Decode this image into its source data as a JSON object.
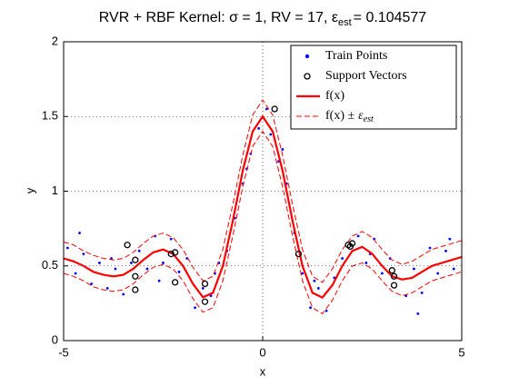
{
  "chart_data": {
    "type": "rvr",
    "title": [
      "RVR + RBF Kernel: σ = 1, RV = 17, ε",
      "est",
      "= 0.104577"
    ],
    "xlabel": "x",
    "ylabel": "y",
    "xlim": [
      -5,
      5
    ],
    "ylim": [
      0,
      2
    ],
    "xticks": [
      -5,
      0,
      5
    ],
    "yticks": [
      0,
      0.5,
      1,
      1.5,
      2
    ],
    "grid": true,
    "legend": "northeast",
    "train": {
      "name": "Train Points",
      "color": "#0000ff",
      "x": [
        -4.9,
        -4.7,
        -4.5,
        -4.3,
        -4.1,
        -3.9,
        -3.7,
        -3.5,
        -3.3,
        -3.1,
        -2.9,
        -2.7,
        -2.5,
        -2.3,
        -2.1,
        -1.9,
        -1.7,
        -1.5,
        -1.3,
        -1.1,
        -0.9,
        -0.7,
        -0.5,
        -0.3,
        -0.1,
        0.1,
        0.2,
        0.4,
        0.6,
        0.8,
        1.0,
        1.2,
        1.4,
        1.6,
        1.8,
        2.0,
        2.4,
        2.6,
        2.8,
        3.0,
        3.2,
        3.6,
        3.8,
        4.0,
        4.2,
        4.4,
        4.6,
        4.8,
        -4.6,
        -3.8,
        -2.6,
        -1.2,
        -0.4,
        0.5,
        1.3,
        2.7,
        3.9,
        4.7
      ],
      "y": [
        0.62,
        0.45,
        0.58,
        0.38,
        0.52,
        0.35,
        0.48,
        0.31,
        0.52,
        0.6,
        0.48,
        0.7,
        0.52,
        0.68,
        0.46,
        0.55,
        0.22,
        0.35,
        0.3,
        0.52,
        0.6,
        0.82,
        1.05,
        1.25,
        1.42,
        1.55,
        1.38,
        1.2,
        1.05,
        0.72,
        0.45,
        0.22,
        0.35,
        0.2,
        0.42,
        0.55,
        0.7,
        0.52,
        0.68,
        0.45,
        0.55,
        0.3,
        0.48,
        0.32,
        0.62,
        0.45,
        0.6,
        0.48,
        0.72,
        0.55,
        0.4,
        0.45,
        1.15,
        1.28,
        0.4,
        0.58,
        0.18,
        0.68
      ]
    },
    "support_vectors": {
      "name": "Support Vectors",
      "color": "#000000",
      "x": [
        -3.4,
        -3.2,
        -3.2,
        -3.2,
        -2.3,
        -2.2,
        -2.2,
        -1.45,
        -1.45,
        0.3,
        0.9,
        2.15,
        2.2,
        2.25,
        3.25,
        3.3,
        3.3
      ],
      "y": [
        0.64,
        0.54,
        0.43,
        0.34,
        0.58,
        0.59,
        0.39,
        0.38,
        0.26,
        1.55,
        0.58,
        0.64,
        0.63,
        0.65,
        0.47,
        0.43,
        0.37
      ]
    },
    "fit": {
      "name": "f(x)",
      "color": "#ff0000",
      "x": [
        -5,
        -4.75,
        -4.5,
        -4.25,
        -4,
        -3.75,
        -3.5,
        -3.25,
        -3,
        -2.75,
        -2.5,
        -2.25,
        -2,
        -1.75,
        -1.5,
        -1.25,
        -1,
        -0.75,
        -0.5,
        -0.25,
        0,
        0.25,
        0.5,
        0.75,
        1,
        1.25,
        1.5,
        1.75,
        2,
        2.25,
        2.5,
        2.75,
        3,
        3.25,
        3.5,
        3.75,
        4,
        4.25,
        4.5,
        4.75,
        5
      ],
      "values": [
        0.55,
        0.53,
        0.5,
        0.46,
        0.44,
        0.43,
        0.44,
        0.48,
        0.54,
        0.59,
        0.61,
        0.58,
        0.5,
        0.38,
        0.29,
        0.32,
        0.5,
        0.8,
        1.137,
        1.4,
        1.5,
        1.4,
        1.137,
        0.8,
        0.5,
        0.32,
        0.288,
        0.371,
        0.5,
        0.6,
        0.627,
        0.582,
        0.5,
        0.431,
        0.409,
        0.42,
        0.46,
        0.5,
        0.52,
        0.54,
        0.56
      ]
    },
    "bounds": {
      "name": [
        "f(x) ±",
        "ε",
        "est"
      ],
      "color": "#ff0000",
      "upper": [
        0.66,
        0.64,
        0.6,
        0.57,
        0.55,
        0.54,
        0.55,
        0.59,
        0.65,
        0.7,
        0.72,
        0.69,
        0.61,
        0.49,
        0.4,
        0.43,
        0.61,
        0.91,
        1.24,
        1.51,
        1.61,
        1.51,
        1.24,
        0.91,
        0.61,
        0.43,
        0.39,
        0.48,
        0.61,
        0.7,
        0.73,
        0.69,
        0.61,
        0.54,
        0.51,
        0.53,
        0.57,
        0.61,
        0.63,
        0.65,
        0.67
      ],
      "lower": [
        0.45,
        0.43,
        0.4,
        0.36,
        0.34,
        0.33,
        0.34,
        0.38,
        0.44,
        0.49,
        0.51,
        0.48,
        0.4,
        0.28,
        0.19,
        0.22,
        0.4,
        0.7,
        1.03,
        1.3,
        1.4,
        1.3,
        1.03,
        0.7,
        0.4,
        0.22,
        0.18,
        0.27,
        0.4,
        0.5,
        0.52,
        0.48,
        0.4,
        0.33,
        0.3,
        0.32,
        0.36,
        0.4,
        0.42,
        0.44,
        0.46
      ]
    }
  }
}
